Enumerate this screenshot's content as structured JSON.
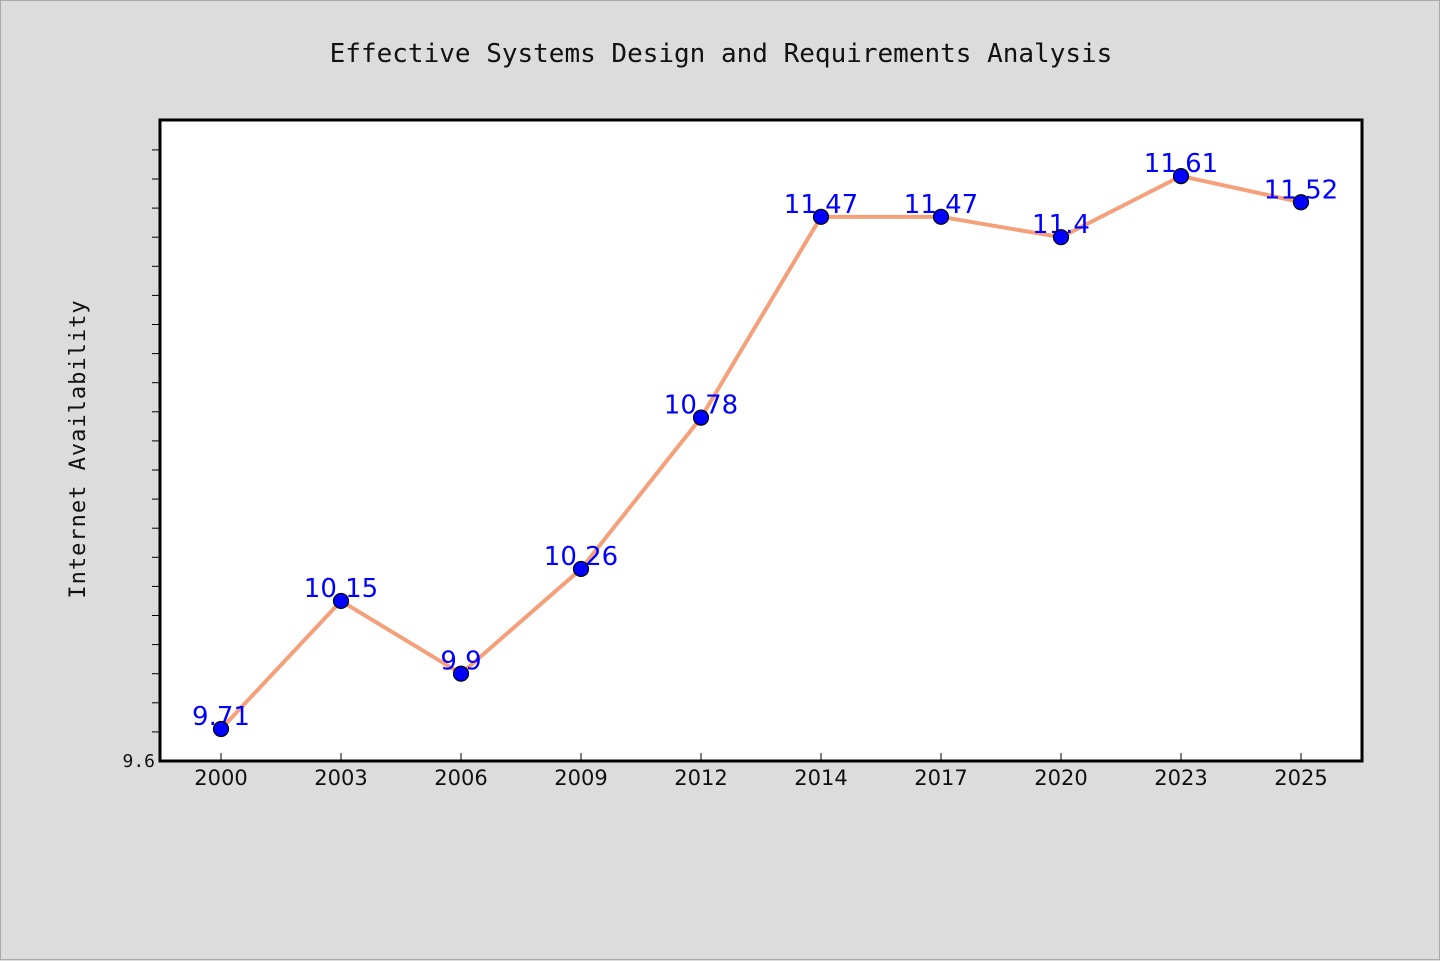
{
  "chart_data": {
    "type": "line",
    "title": "Effective Systems Design and Requirements Analysis",
    "xlabel": "",
    "ylabel": "Internet Availability",
    "categories": [
      "2000",
      "2003",
      "2006",
      "2009",
      "2012",
      "2014",
      "2017",
      "2020",
      "2023",
      "2025"
    ],
    "series": [
      {
        "values": [
          9.71,
          10.15,
          9.9,
          10.26,
          10.78,
          11.47,
          11.47,
          11.4,
          11.61,
          11.52
        ],
        "data_labels": [
          "9.71",
          "10.15",
          "9.9",
          "10.26",
          "10.78",
          "11.47",
          "11.47",
          "11.4",
          "11.61",
          "11.52"
        ]
      }
    ],
    "ylim": [
      9.6,
      11.8
    ],
    "y_tick_labels": [
      {
        "value": 9.6,
        "label": "9.6"
      }
    ],
    "minor_tick_step": 0.1,
    "grid": false,
    "colors": {
      "line": "#f4a07a",
      "marker": "#0000ff",
      "marker_edge": "#000000",
      "data_label": "#0000ff",
      "plot_background": "#ffffff",
      "figure_background": "#dcdcdc"
    }
  }
}
